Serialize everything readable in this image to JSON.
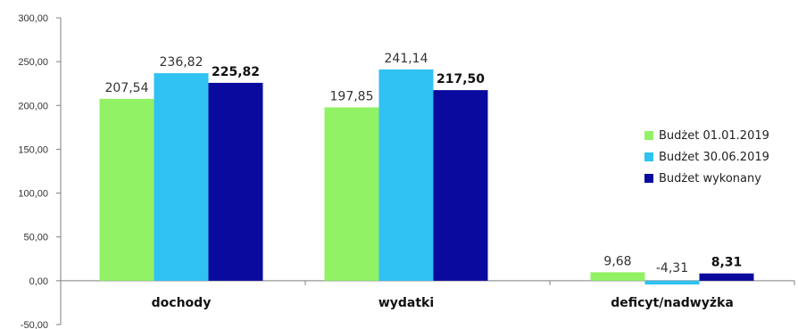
{
  "chart_data": {
    "type": "bar",
    "categories": [
      "dochody",
      "wydatki",
      "deficyt/nadwyżka"
    ],
    "series": [
      {
        "name": "Budżet 01.01.2019",
        "color": "#92f266",
        "values": [
          207.54,
          197.85,
          9.68
        ],
        "labels": [
          "207,54",
          "197,85",
          "9,68"
        ],
        "bold": false
      },
      {
        "name": "Budżet 30.06.2019",
        "color": "#2fc2f2",
        "values": [
          236.82,
          241.14,
          -4.31
        ],
        "labels": [
          "236,82",
          "241,14",
          "-4,31"
        ],
        "bold": false
      },
      {
        "name": "Budżet wykonany",
        "color": "#0a0a9e",
        "values": [
          225.82,
          217.5,
          8.31
        ],
        "labels": [
          "225,82",
          "217,50",
          "8,31"
        ],
        "bold": true
      }
    ],
    "ylim": [
      -50,
      300
    ],
    "yticks": [
      300,
      250,
      200,
      150,
      100,
      50,
      0,
      -50
    ],
    "ytick_labels": [
      "300,00",
      "250,00",
      "200,00",
      "150,00",
      "100,00",
      "50,00",
      "0,00",
      "-50,00"
    ],
    "title": "",
    "xlabel": "",
    "ylabel": "",
    "grid": false,
    "legend_position": "right"
  }
}
